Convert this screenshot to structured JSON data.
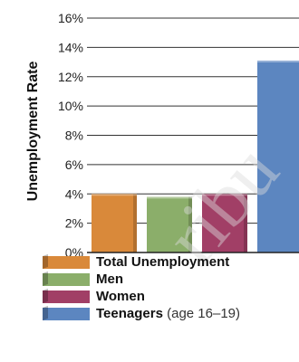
{
  "chart_data": {
    "type": "bar",
    "title": "",
    "xlabel": "",
    "ylabel": "Unemployment Rate",
    "ylim": [
      0,
      16
    ],
    "yticks": [
      "0%",
      "2%",
      "4%",
      "6%",
      "8%",
      "10%",
      "12%",
      "14%",
      "16%"
    ],
    "grid": true,
    "legend_position": "bottom",
    "categories": [
      "Total Unemployment",
      "Men",
      "Women",
      "Teenagers"
    ],
    "values": [
      4.0,
      3.8,
      4.0,
      13.1
    ],
    "colors": [
      "#d9893a",
      "#8bae6a",
      "#a13f66",
      "#5c86c0"
    ]
  },
  "legend": {
    "items": [
      {
        "label": "Total Unemployment",
        "note": "",
        "color": "#d9893a"
      },
      {
        "label": "Men",
        "note": "",
        "color": "#8bae6a"
      },
      {
        "label": "Women",
        "note": "",
        "color": "#a13f66"
      },
      {
        "label": "Teenagers",
        "note": " (age 16–19)",
        "color": "#5c86c0"
      }
    ]
  },
  "watermark": "ribu"
}
